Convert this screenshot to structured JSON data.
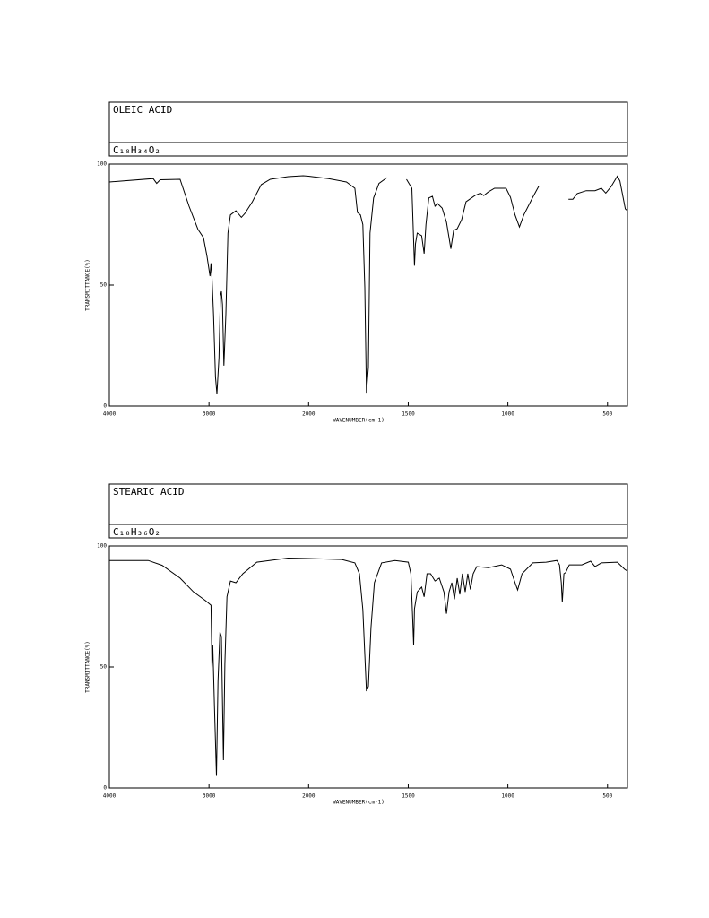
{
  "chart_data": [
    {
      "type": "line",
      "title": "OLEIC ACID",
      "subtitle": "C₁₈H₃₄O₂",
      "xlabel": "WAVENUMBER(cm-1)",
      "ylabel": "TRANSMITTANCE(%)",
      "color": "#000000",
      "xlim": [
        4000,
        400
      ],
      "ylim": [
        0,
        100
      ],
      "xticks": [
        4000,
        3000,
        2000,
        1500,
        1000,
        500
      ],
      "yticks": [
        0,
        50,
        100
      ],
      "x": [
        4000,
        3560,
        3525,
        3490,
        3290,
        3200,
        3110,
        3055,
        3020,
        2990,
        2980,
        2970,
        2955,
        2935,
        2920,
        2900,
        2885,
        2875,
        2865,
        2850,
        2830,
        2810,
        2785,
        2730,
        2675,
        2640,
        2565,
        2475,
        2385,
        2205,
        2055,
        2000,
        1900,
        1810,
        1768,
        1755,
        1740,
        1728,
        1718,
        1710,
        1700,
        1692,
        1674,
        1647,
        1607,
        1560,
        1509,
        1482,
        1469,
        1464,
        1455,
        1433,
        1420,
        1411,
        1397,
        1379,
        1366,
        1353,
        1330,
        1308,
        1286,
        1272,
        1254,
        1232,
        1210,
        1165,
        1138,
        1121,
        1098,
        1067,
        1009,
        987,
        964,
        942,
        920,
        875,
        844,
        770,
        696,
        674,
        652,
        607,
        563,
        531,
        509,
        482,
        451,
        438,
        411,
        400
      ],
      "values": [
        92.6,
        94,
        92,
        93.5,
        93.7,
        82.6,
        73,
        69.6,
        62,
        53.7,
        59,
        53,
        38,
        12,
        5,
        20,
        45.5,
        47.4,
        42,
        16.7,
        38,
        71.5,
        79,
        80.7,
        78,
        79.6,
        84.4,
        91.5,
        93.7,
        94.8,
        95.2,
        95,
        94,
        92.6,
        90,
        80,
        79,
        75,
        49,
        5.5,
        16,
        71.5,
        86,
        92,
        94.4,
        null,
        93.7,
        90,
        58,
        67,
        71.5,
        70.4,
        63,
        75,
        86,
        86.7,
        82.6,
        83.7,
        81.8,
        76,
        65,
        72.6,
        73.3,
        77,
        84.4,
        87,
        88,
        87,
        88.5,
        90,
        90,
        86.3,
        79,
        74,
        79,
        86.3,
        91,
        null,
        85.5,
        85.5,
        87.8,
        89,
        89,
        90,
        88,
        90.7,
        95,
        93,
        81.5,
        80.7
      ]
    },
    {
      "type": "line",
      "title": "STEARIC ACID",
      "subtitle": "C₁₈H₃₆O₂",
      "xlabel": "WAVENUMBER(cm-1)",
      "ylabel": "TRANSMITTANCE(%)",
      "color": "#000000",
      "xlim": [
        4000,
        400
      ],
      "ylim": [
        0,
        100
      ],
      "xticks": [
        4000,
        3000,
        2000,
        1500,
        1000,
        500
      ],
      "yticks": [
        0,
        50,
        100
      ],
      "x": [
        4000,
        3610,
        3470,
        3290,
        3155,
        3035,
        2980,
        2970,
        2962,
        2945,
        2925,
        2910,
        2890,
        2875,
        2855,
        2840,
        2820,
        2785,
        2730,
        2660,
        2520,
        2205,
        2000,
        1833,
        1768,
        1745,
        1728,
        1710,
        1700,
        1687,
        1670,
        1634,
        1567,
        1500,
        1487,
        1478,
        1473,
        1469,
        1455,
        1433,
        1420,
        1406,
        1388,
        1366,
        1344,
        1321,
        1308,
        1295,
        1281,
        1268,
        1254,
        1241,
        1228,
        1214,
        1201,
        1188,
        1174,
        1156,
        1098,
        1031,
        987,
        964,
        951,
        929,
        875,
        808,
        754,
        741,
        732,
        727,
        719,
        710,
        692,
        629,
        585,
        563,
        531,
        451,
        415,
        400
      ],
      "values": [
        94,
        94,
        92,
        86.7,
        81,
        77.4,
        75.5,
        49.6,
        59,
        33,
        5,
        44,
        64.4,
        62.6,
        11.5,
        51.5,
        79,
        85.5,
        84.8,
        88.5,
        93.3,
        95,
        94.8,
        94.4,
        93,
        88.5,
        73.7,
        40,
        42,
        66.3,
        84.8,
        93,
        94,
        93.3,
        88.5,
        70,
        59,
        74,
        81,
        83,
        79,
        88.5,
        88.5,
        85.5,
        86.7,
        81,
        72,
        81,
        84.8,
        78,
        86.7,
        80,
        88.5,
        81,
        88.5,
        82,
        88.5,
        91.5,
        91,
        92.2,
        90.4,
        84.8,
        81.8,
        88.5,
        93,
        93.3,
        94,
        92.2,
        84.8,
        76.7,
        88.5,
        89,
        92.2,
        92.2,
        93.7,
        91.5,
        93,
        93.3,
        90.4,
        89.6
      ]
    }
  ]
}
